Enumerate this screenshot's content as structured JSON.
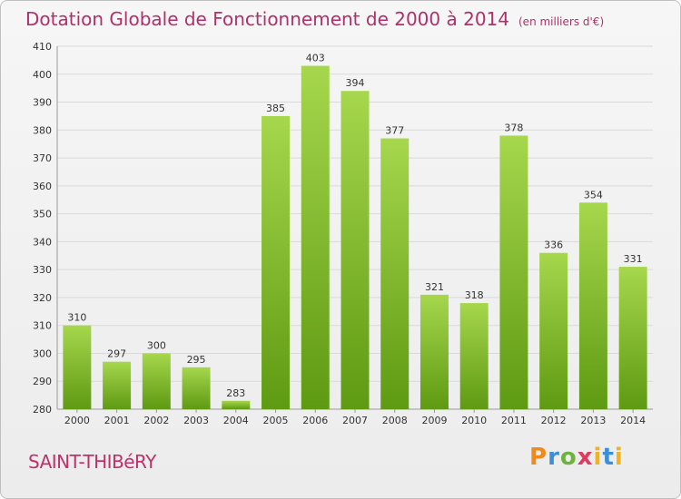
{
  "header": {
    "title": "Dotation Globale de Fonctionnement de 2000 à 2014",
    "unit": "(en milliers d'€)"
  },
  "footer": {
    "town": "SAINT-THIBéRY",
    "logo": [
      "P",
      "r",
      "o",
      "x",
      "i",
      "t",
      "i"
    ]
  },
  "colors": {
    "bar_top": "#a6d74d",
    "bar_bottom": "#5e9a12",
    "title": "#b0306a",
    "grid": "#d9d9d9"
  },
  "chart_data": {
    "type": "bar",
    "categories": [
      "2000",
      "2001",
      "2002",
      "2003",
      "2004",
      "2005",
      "2006",
      "2007",
      "2008",
      "2009",
      "2010",
      "2011",
      "2012",
      "2013",
      "2014"
    ],
    "values": [
      310,
      297,
      300,
      295,
      283,
      385,
      403,
      394,
      377,
      321,
      318,
      378,
      336,
      354,
      331
    ],
    "ylim": [
      280,
      410
    ],
    "yticks": [
      280,
      290,
      300,
      310,
      320,
      330,
      340,
      350,
      360,
      370,
      380,
      390,
      400,
      410
    ],
    "grid": true
  }
}
